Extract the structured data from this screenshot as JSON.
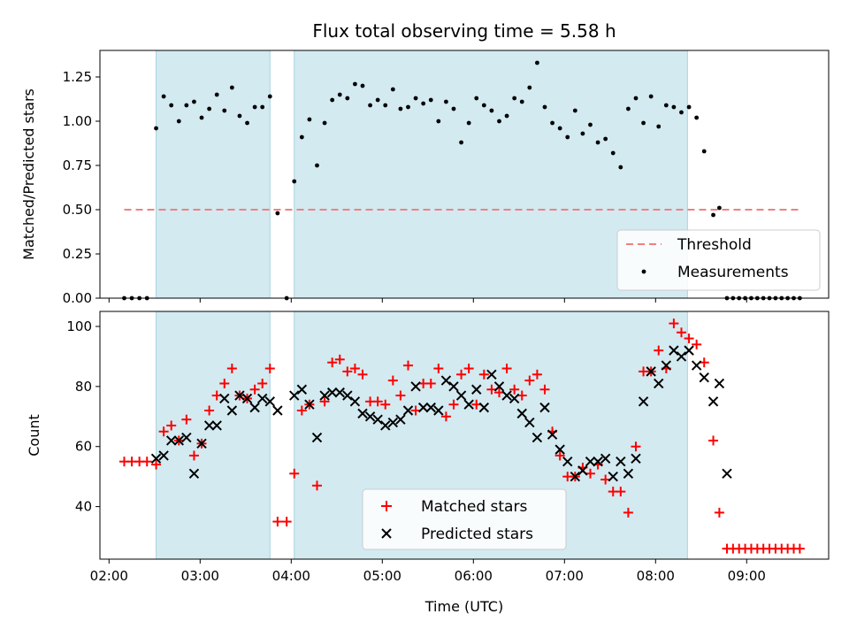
{
  "title": "Flux total observing time = 5.58 h",
  "xlabel": "Time (UTC)",
  "x_ticks": [
    "02:00",
    "03:00",
    "04:00",
    "05:00",
    "06:00",
    "07:00",
    "08:00",
    "09:00"
  ],
  "colors": {
    "span": "#d3eaf1",
    "threshold": "#f08080",
    "matched": "#ff0000",
    "predicted": "#000000",
    "measure": "#000000"
  },
  "chart_data": [
    {
      "type": "scatter",
      "ylabel": "Matched/Predicted stars",
      "xlim": [
        "01:54",
        "09:54"
      ],
      "ylim": [
        0,
        1.4
      ],
      "y_ticks": [
        "0.00",
        "0.25",
        "0.50",
        "0.75",
        "1.00",
        "1.25"
      ],
      "legend_position": "lower-right",
      "observing_spans": [
        [
          "02:31",
          "03:46"
        ],
        [
          "04:02",
          "08:21"
        ]
      ],
      "threshold": {
        "name": "Threshold",
        "value": 0.5,
        "x_range": [
          "02:10",
          "09:35"
        ]
      },
      "series": [
        {
          "name": "Measurements",
          "points": [
            [
              "02:10",
              0
            ],
            [
              "02:15",
              0
            ],
            [
              "02:20",
              0
            ],
            [
              "02:25",
              0
            ],
            [
              "02:31",
              0.96
            ],
            [
              "02:36",
              1.14
            ],
            [
              "02:41",
              1.09
            ],
            [
              "02:46",
              1.0
            ],
            [
              "02:51",
              1.09
            ],
            [
              "02:56",
              1.11
            ],
            [
              "03:01",
              1.02
            ],
            [
              "03:06",
              1.07
            ],
            [
              "03:11",
              1.15
            ],
            [
              "03:16",
              1.06
            ],
            [
              "03:21",
              1.19
            ],
            [
              "03:26",
              1.03
            ],
            [
              "03:31",
              0.99
            ],
            [
              "03:36",
              1.08
            ],
            [
              "03:41",
              1.08
            ],
            [
              "03:46",
              1.14
            ],
            [
              "03:51",
              0.48
            ],
            [
              "03:57",
              0
            ],
            [
              "04:02",
              0.66
            ],
            [
              "04:07",
              0.91
            ],
            [
              "04:12",
              1.01
            ],
            [
              "04:17",
              0.75
            ],
            [
              "04:22",
              0.99
            ],
            [
              "04:27",
              1.12
            ],
            [
              "04:32",
              1.15
            ],
            [
              "04:37",
              1.13
            ],
            [
              "04:42",
              1.21
            ],
            [
              "04:47",
              1.2
            ],
            [
              "04:52",
              1.09
            ],
            [
              "04:57",
              1.12
            ],
            [
              "05:02",
              1.09
            ],
            [
              "05:07",
              1.18
            ],
            [
              "05:12",
              1.07
            ],
            [
              "05:17",
              1.08
            ],
            [
              "05:22",
              1.13
            ],
            [
              "05:27",
              1.1
            ],
            [
              "05:32",
              1.12
            ],
            [
              "05:37",
              1.0
            ],
            [
              "05:42",
              1.11
            ],
            [
              "05:47",
              1.07
            ],
            [
              "05:52",
              0.88
            ],
            [
              "05:57",
              0.99
            ],
            [
              "06:02",
              1.13
            ],
            [
              "06:07",
              1.09
            ],
            [
              "06:12",
              1.06
            ],
            [
              "06:17",
              1.0
            ],
            [
              "06:22",
              1.03
            ],
            [
              "06:27",
              1.13
            ],
            [
              "06:32",
              1.11
            ],
            [
              "06:37",
              1.19
            ],
            [
              "06:42",
              1.33
            ],
            [
              "06:47",
              1.08
            ],
            [
              "06:52",
              0.99
            ],
            [
              "06:57",
              0.96
            ],
            [
              "07:02",
              0.91
            ],
            [
              "07:07",
              1.06
            ],
            [
              "07:12",
              0.93
            ],
            [
              "07:17",
              0.98
            ],
            [
              "07:22",
              0.88
            ],
            [
              "07:27",
              0.9
            ],
            [
              "07:32",
              0.82
            ],
            [
              "07:37",
              0.74
            ],
            [
              "07:42",
              1.07
            ],
            [
              "07:47",
              1.13
            ],
            [
              "07:52",
              0.99
            ],
            [
              "07:57",
              1.14
            ],
            [
              "08:02",
              0.97
            ],
            [
              "08:07",
              1.09
            ],
            [
              "08:12",
              1.08
            ],
            [
              "08:17",
              1.05
            ],
            [
              "08:22",
              1.08
            ],
            [
              "08:27",
              1.02
            ],
            [
              "08:32",
              0.83
            ],
            [
              "08:38",
              0.47
            ],
            [
              "08:42",
              0.51
            ],
            [
              "08:47",
              0
            ],
            [
              "08:51",
              0
            ],
            [
              "08:55",
              0
            ],
            [
              "08:59",
              0
            ],
            [
              "09:03",
              0
            ],
            [
              "09:07",
              0
            ],
            [
              "09:11",
              0
            ],
            [
              "09:15",
              0
            ],
            [
              "09:19",
              0
            ],
            [
              "09:23",
              0
            ],
            [
              "09:27",
              0
            ],
            [
              "09:31",
              0
            ],
            [
              "09:35",
              0
            ]
          ]
        }
      ]
    },
    {
      "type": "scatter",
      "ylabel": "Count",
      "xlim": [
        "01:54",
        "09:54"
      ],
      "ylim": [
        22.5,
        105
      ],
      "y_ticks": [
        "40",
        "60",
        "80",
        "100"
      ],
      "legend_position": "lower-center",
      "observing_spans": [
        [
          "02:31",
          "03:46"
        ],
        [
          "04:02",
          "08:21"
        ]
      ],
      "series": [
        {
          "name": "Matched stars",
          "marker": "plus",
          "points": [
            [
              "02:10",
              55
            ],
            [
              "02:15",
              55
            ],
            [
              "02:20",
              55
            ],
            [
              "02:25",
              55
            ],
            [
              "02:31",
              54
            ],
            [
              "02:36",
              65
            ],
            [
              "02:41",
              67
            ],
            [
              "02:46",
              62
            ],
            [
              "02:51",
              69
            ],
            [
              "02:56",
              57
            ],
            [
              "03:01",
              61
            ],
            [
              "03:06",
              72
            ],
            [
              "03:11",
              77
            ],
            [
              "03:16",
              81
            ],
            [
              "03:21",
              86
            ],
            [
              "03:26",
              77
            ],
            [
              "03:31",
              76
            ],
            [
              "03:36",
              79
            ],
            [
              "03:41",
              81
            ],
            [
              "03:46",
              86
            ],
            [
              "03:51",
              35
            ],
            [
              "03:57",
              35
            ],
            [
              "04:02",
              51
            ],
            [
              "04:07",
              72
            ],
            [
              "04:12",
              74
            ],
            [
              "04:17",
              47
            ],
            [
              "04:22",
              75
            ],
            [
              "04:27",
              88
            ],
            [
              "04:32",
              89
            ],
            [
              "04:37",
              85
            ],
            [
              "04:42",
              86
            ],
            [
              "04:47",
              84
            ],
            [
              "04:52",
              75
            ],
            [
              "04:57",
              75
            ],
            [
              "05:02",
              74
            ],
            [
              "05:07",
              82
            ],
            [
              "05:12",
              77
            ],
            [
              "05:17",
              87
            ],
            [
              "05:22",
              72
            ],
            [
              "05:27",
              81
            ],
            [
              "05:32",
              81
            ],
            [
              "05:37",
              86
            ],
            [
              "05:42",
              70
            ],
            [
              "05:47",
              74
            ],
            [
              "05:52",
              84
            ],
            [
              "05:57",
              86
            ],
            [
              "06:02",
              74
            ],
            [
              "06:07",
              84
            ],
            [
              "06:12",
              79
            ],
            [
              "06:17",
              78
            ],
            [
              "06:22",
              86
            ],
            [
              "06:27",
              79
            ],
            [
              "06:32",
              77
            ],
            [
              "06:37",
              82
            ],
            [
              "06:42",
              84
            ],
            [
              "06:47",
              79
            ],
            [
              "06:52",
              65
            ],
            [
              "06:57",
              57
            ],
            [
              "07:02",
              50
            ],
            [
              "07:07",
              50
            ],
            [
              "07:12",
              53
            ],
            [
              "07:17",
              51
            ],
            [
              "07:22",
              54
            ],
            [
              "07:27",
              49
            ],
            [
              "07:32",
              45
            ],
            [
              "07:37",
              45
            ],
            [
              "07:42",
              38
            ],
            [
              "07:47",
              60
            ],
            [
              "07:52",
              85
            ],
            [
              "07:57",
              85
            ],
            [
              "08:02",
              92
            ],
            [
              "08:07",
              86
            ],
            [
              "08:12",
              101
            ],
            [
              "08:17",
              98
            ],
            [
              "08:22",
              96
            ],
            [
              "08:27",
              94
            ],
            [
              "08:32",
              88
            ],
            [
              "08:38",
              62
            ],
            [
              "08:42",
              38
            ],
            [
              "08:47",
              26
            ],
            [
              "08:51",
              26
            ],
            [
              "08:55",
              26
            ],
            [
              "08:59",
              26
            ],
            [
              "09:03",
              26
            ],
            [
              "09:07",
              26
            ],
            [
              "09:11",
              26
            ],
            [
              "09:15",
              26
            ],
            [
              "09:19",
              26
            ],
            [
              "09:23",
              26
            ],
            [
              "09:27",
              26
            ],
            [
              "09:31",
              26
            ],
            [
              "09:35",
              26
            ]
          ]
        },
        {
          "name": "Predicted stars",
          "marker": "cross",
          "points": [
            [
              "02:31",
              56
            ],
            [
              "02:36",
              57
            ],
            [
              "02:41",
              62
            ],
            [
              "02:46",
              62
            ],
            [
              "02:51",
              63
            ],
            [
              "02:56",
              51
            ],
            [
              "03:01",
              61
            ],
            [
              "03:06",
              67
            ],
            [
              "03:11",
              67
            ],
            [
              "03:16",
              76
            ],
            [
              "03:21",
              72
            ],
            [
              "03:26",
              77
            ],
            [
              "03:31",
              76
            ],
            [
              "03:36",
              73
            ],
            [
              "03:41",
              76
            ],
            [
              "03:46",
              75
            ],
            [
              "03:51",
              72
            ],
            [
              "04:02",
              77
            ],
            [
              "04:07",
              79
            ],
            [
              "04:12",
              74
            ],
            [
              "04:17",
              63
            ],
            [
              "04:22",
              77
            ],
            [
              "04:27",
              78
            ],
            [
              "04:32",
              78
            ],
            [
              "04:37",
              77
            ],
            [
              "04:42",
              75
            ],
            [
              "04:47",
              71
            ],
            [
              "04:52",
              70
            ],
            [
              "04:57",
              69
            ],
            [
              "05:02",
              67
            ],
            [
              "05:07",
              68
            ],
            [
              "05:12",
              69
            ],
            [
              "05:17",
              72
            ],
            [
              "05:22",
              80
            ],
            [
              "05:27",
              73
            ],
            [
              "05:32",
              73
            ],
            [
              "05:37",
              72
            ],
            [
              "05:42",
              82
            ],
            [
              "05:47",
              80
            ],
            [
              "05:52",
              77
            ],
            [
              "05:57",
              74
            ],
            [
              "06:02",
              79
            ],
            [
              "06:07",
              73
            ],
            [
              "06:12",
              84
            ],
            [
              "06:17",
              80
            ],
            [
              "06:22",
              77
            ],
            [
              "06:27",
              76
            ],
            [
              "06:32",
              71
            ],
            [
              "06:37",
              68
            ],
            [
              "06:42",
              63
            ],
            [
              "06:47",
              73
            ],
            [
              "06:52",
              64
            ],
            [
              "06:57",
              59
            ],
            [
              "07:02",
              55
            ],
            [
              "07:07",
              50
            ],
            [
              "07:12",
              52
            ],
            [
              "07:17",
              55
            ],
            [
              "07:22",
              55
            ],
            [
              "07:27",
              56
            ],
            [
              "07:32",
              50
            ],
            [
              "07:37",
              55
            ],
            [
              "07:42",
              51
            ],
            [
              "07:47",
              56
            ],
            [
              "07:52",
              75
            ],
            [
              "07:57",
              85
            ],
            [
              "08:02",
              81
            ],
            [
              "08:07",
              87
            ],
            [
              "08:12",
              92
            ],
            [
              "08:17",
              90
            ],
            [
              "08:22",
              92
            ],
            [
              "08:27",
              87
            ],
            [
              "08:32",
              83
            ],
            [
              "08:38",
              75
            ],
            [
              "08:42",
              81
            ],
            [
              "08:47",
              51
            ]
          ]
        }
      ]
    }
  ]
}
